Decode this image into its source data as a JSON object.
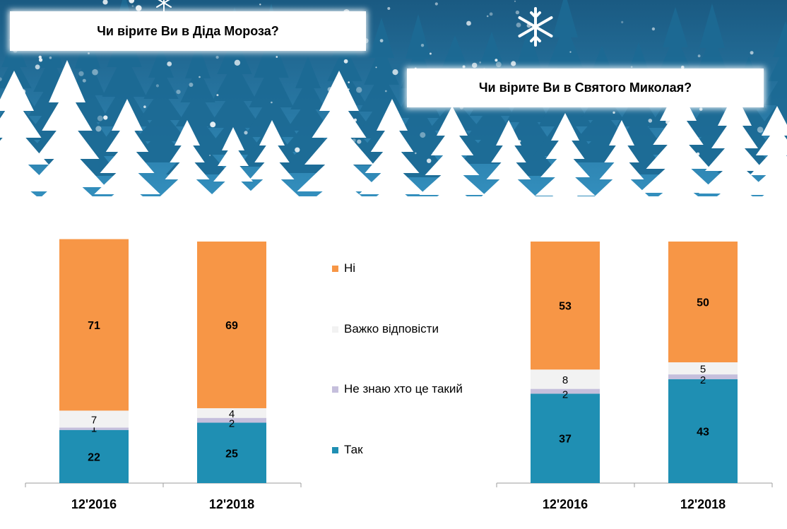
{
  "titles": {
    "left": "Чи вірите Ви в Діда Мороза?",
    "right": "Чи вірите Ви в Святого Миколая?"
  },
  "colors": {
    "ni": "#f79646",
    "vazhko": "#f2f2f2",
    "ne_znayu": "#c5bfdc",
    "tak": "#1f8fb3",
    "banner_top": "#1c5e86",
    "banner_bottom": "#2f8ab8"
  },
  "legend": [
    {
      "key": "ni",
      "label": "Ні"
    },
    {
      "key": "vazhko",
      "label": "Важко відповісти"
    },
    {
      "key": "ne_znayu",
      "label": "Не знаю хто це такий"
    },
    {
      "key": "tak",
      "label": "Так"
    }
  ],
  "chart_data": [
    {
      "type": "bar",
      "stacked": true,
      "title": "Чи вірите Ви в Діда Мороза?",
      "categories": [
        "12'2016",
        "12'2018"
      ],
      "series": [
        {
          "name": "Так",
          "key": "tak",
          "values": [
            22,
            25
          ]
        },
        {
          "name": "Не знаю хто це такий",
          "key": "ne_znayu",
          "values": [
            1,
            2
          ]
        },
        {
          "name": "Важко відповісти",
          "key": "vazhko",
          "values": [
            7,
            4
          ]
        },
        {
          "name": "Ні",
          "key": "ni",
          "values": [
            71,
            69
          ]
        }
      ],
      "ylim": [
        0,
        100
      ]
    },
    {
      "type": "bar",
      "stacked": true,
      "title": "Чи вірите Ви в Святого Миколая?",
      "categories": [
        "12'2016",
        "12'2018"
      ],
      "series": [
        {
          "name": "Так",
          "key": "tak",
          "values": [
            37,
            43
          ]
        },
        {
          "name": "Не знаю хто це такий",
          "key": "ne_znayu",
          "values": [
            2,
            2
          ]
        },
        {
          "name": "Важко відповісти",
          "key": "vazhko",
          "values": [
            8,
            5
          ]
        },
        {
          "name": "Ні",
          "key": "ni",
          "values": [
            53,
            50
          ]
        }
      ],
      "ylim": [
        0,
        100
      ]
    }
  ]
}
